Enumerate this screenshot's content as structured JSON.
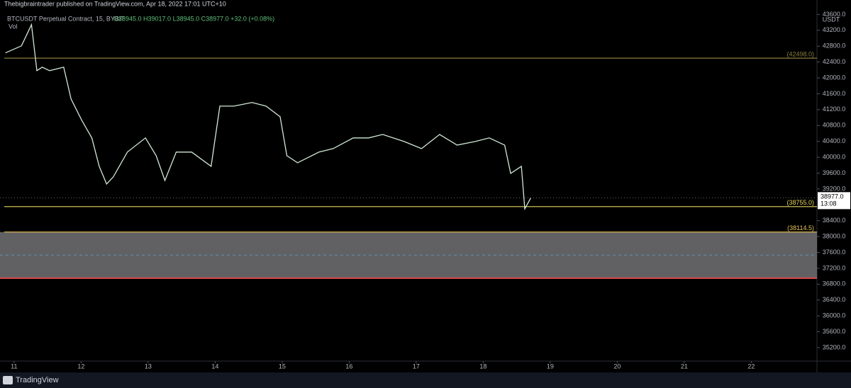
{
  "header": {
    "publisher": "Thebigbraintrader published on TradingView.com, Apr 18, 2022 17:01 UTC+10"
  },
  "footer": {
    "brand": "TradingView"
  },
  "chart_data": {
    "type": "line",
    "title": "BTCUSDT Perpetual Contract, 15, BYBIT",
    "ohlc": "O38945.0 H39017.0 L38945.0 C38977.0 +32.0 (+0.08%)",
    "volume_label": "Vol",
    "currency": "USDT",
    "series": [
      {
        "color": "#d1e8d5",
        "x": [
          10.87,
          11.11,
          11.21,
          11.26,
          11.34,
          11.42,
          11.53,
          11.74,
          11.85,
          12.01,
          12.16,
          12.27,
          12.38,
          12.48,
          12.69,
          12.96,
          13.12,
          13.25,
          13.42,
          13.65,
          13.94,
          14.07,
          14.28,
          14.55,
          14.76,
          14.97,
          15.07,
          15.23,
          15.55,
          15.76,
          16.06,
          16.29,
          16.5,
          16.82,
          17.08,
          17.35,
          17.61,
          17.88,
          18.09,
          18.32,
          18.41,
          18.57,
          18.62,
          18.71
        ],
        "values": [
          42630,
          42807,
          43164,
          43343,
          42182,
          42271,
          42182,
          42271,
          41468,
          40932,
          40486,
          39771,
          39325,
          39504,
          40129,
          40486,
          40039,
          39414,
          40129,
          40129,
          39771,
          41289,
          41289,
          41379,
          41289,
          41021,
          40039,
          39861,
          40129,
          40218,
          40486,
          40486,
          40575,
          40396,
          40218,
          40575,
          40307,
          40396,
          40486,
          40307,
          39593,
          39771,
          38700,
          38977
        ]
      }
    ],
    "xlim": [
      10.79,
      22.98
    ],
    "xticks": [
      11,
      12,
      13,
      14,
      15,
      16,
      17,
      18,
      19,
      20,
      21,
      22
    ],
    "ylim": [
      34860,
      43750
    ],
    "yticks": [
      {
        "value": 35200,
        "label": "35200.0"
      },
      {
        "value": 35600,
        "label": "35600.0"
      },
      {
        "value": 36000,
        "label": "36000.0"
      },
      {
        "value": 36400,
        "label": "36400.0"
      },
      {
        "value": 36800,
        "label": "36800.0"
      },
      {
        "value": 37200,
        "label": "37200.0"
      },
      {
        "value": 37600,
        "label": "37600.0"
      },
      {
        "value": 38000,
        "label": "38000.0"
      },
      {
        "value": 38400,
        "label": "38400.0"
      },
      {
        "value": 39200,
        "label": "39200.0"
      },
      {
        "value": 39600,
        "label": "39600.0"
      },
      {
        "value": 40000,
        "label": "40000.0"
      },
      {
        "value": 40400,
        "label": "40400.0"
      },
      {
        "value": 40800,
        "label": "40800.0"
      },
      {
        "value": 41200,
        "label": "41200.0"
      },
      {
        "value": 41600,
        "label": "41600.0"
      },
      {
        "value": 42000,
        "label": "42000.0"
      },
      {
        "value": 42400,
        "label": "42400.0"
      },
      {
        "value": 42800,
        "label": "42800.0"
      },
      {
        "value": 43200,
        "label": "43200.0"
      },
      {
        "value": 43600,
        "label": "43600.0"
      }
    ],
    "levels": [
      {
        "value": 42498,
        "label": "(42498.0)",
        "color": "#8a7d3a"
      },
      {
        "value": 38755,
        "label": "(38755.0)",
        "color": "#e6d45a"
      },
      {
        "value": 38114.5,
        "label": "(38114.5)",
        "color": "#e6c35a"
      }
    ],
    "zone": {
      "top": 38114.5,
      "bottom": 36950,
      "color": "#6b6b6e",
      "edge_color": "#e04848"
    },
    "last_price": {
      "value": 38977,
      "label": "38977.0"
    },
    "countdown": "13:08"
  }
}
